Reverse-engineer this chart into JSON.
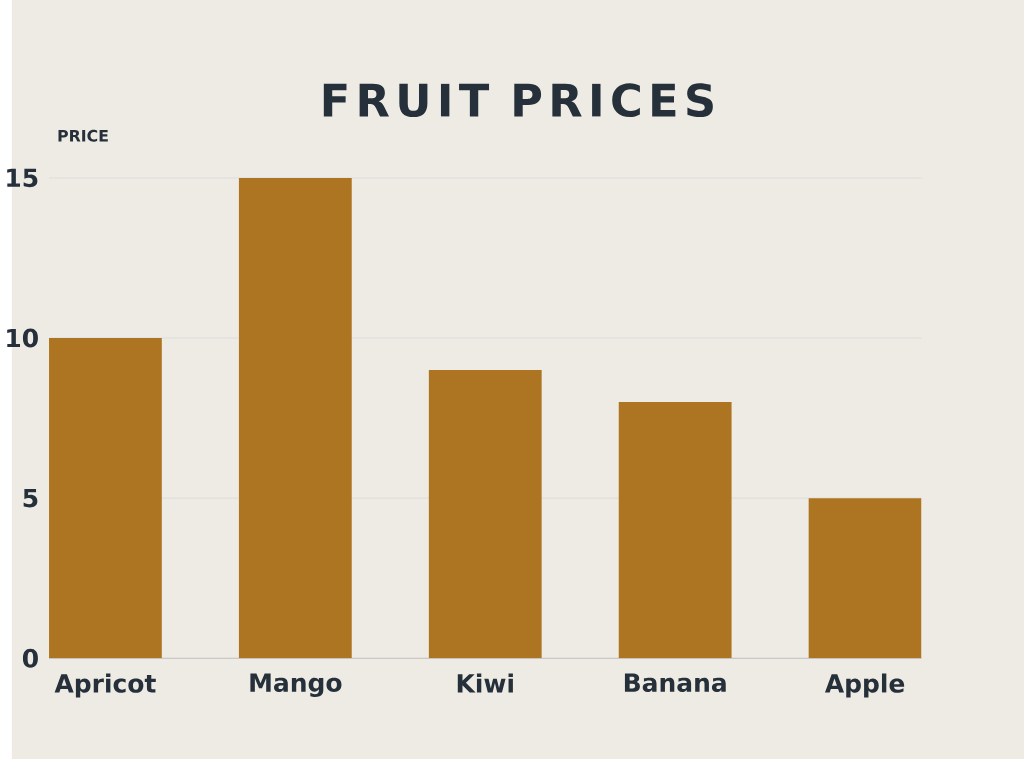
{
  "chart_data": {
    "type": "bar",
    "title": "FRUIT PRICES",
    "ylabel": "PRICE",
    "categories": [
      "Apricot",
      "Mango",
      "Kiwi",
      "Banana",
      "Apple"
    ],
    "values": [
      10,
      15,
      9,
      8,
      5
    ],
    "color": "#ad7522",
    "ylim": [
      0,
      15
    ],
    "yticks": [
      0,
      5,
      10,
      15
    ],
    "grid": "y"
  }
}
